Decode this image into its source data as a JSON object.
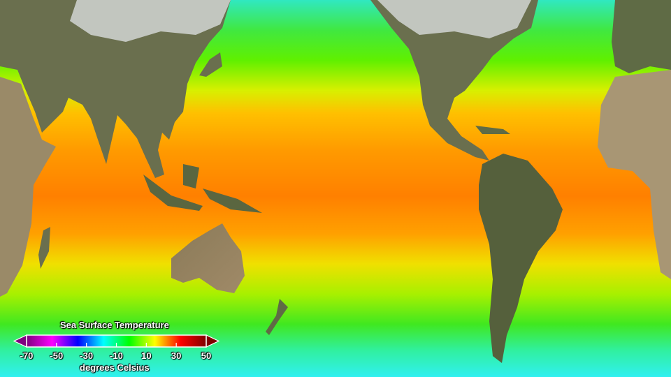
{
  "legend": {
    "title": "Sea Surface Temperature",
    "unit": "degrees Celsius",
    "ticks": [
      "-70",
      "-50",
      "-30",
      "-10",
      "10",
      "30",
      "50"
    ],
    "range": [
      -70,
      50
    ],
    "colors": [
      "#800080",
      "#ff00ff",
      "#0000ff",
      "#00ffff",
      "#00ff00",
      "#ffff00",
      "#ff0000",
      "#800000"
    ]
  },
  "colors": {
    "land": "#5f6b45",
    "desert": "#b09a78",
    "snow": "#dde3e6",
    "polar_ocean": "#30f0e8",
    "mid_ocean": "#50e800",
    "tropical_ocean": "#ff8c00"
  }
}
